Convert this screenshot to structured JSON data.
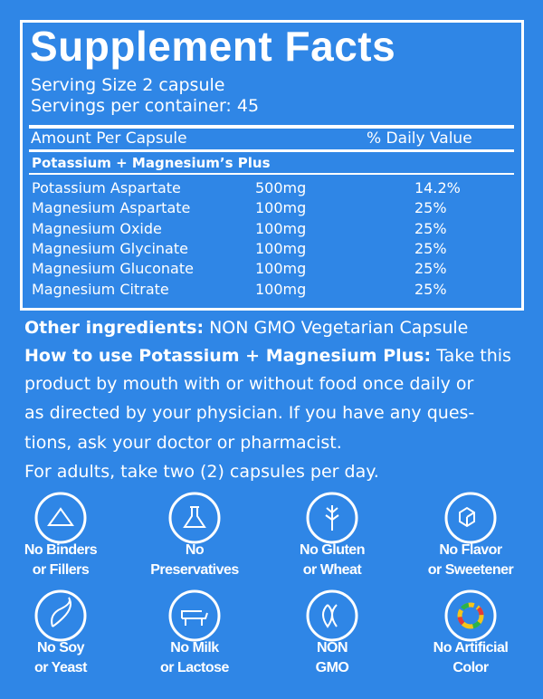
{
  "header": {
    "title": "Supplement Facts",
    "serving_size": "Serving Size 2 capsule",
    "servings": "Servings per container: 45"
  },
  "table": {
    "columns": [
      "Amount Per Capsule",
      "% Daily Value"
    ],
    "section": "Potassium + Magnesium’s Plus",
    "rows": [
      [
        "Potassium Aspartate",
        "500mg",
        "14.2%"
      ],
      [
        "Magnesium Aspartate",
        "100mg",
        "25%"
      ],
      [
        "Magnesium Oxide",
        "100mg",
        "25%"
      ],
      [
        "Magnesium Glycinate",
        "100mg",
        "25%"
      ],
      [
        "Magnesium Gluconate",
        "100mg",
        "25%"
      ],
      [
        "Magnesium Citrate",
        "100mg",
        "25%"
      ]
    ]
  },
  "other_ingredients": {
    "label": "Other ingredients:",
    "text": "NON GMO Vegetarian Capsule"
  },
  "how_to_use": {
    "label": "How to use Potassium + Magnesium Plus:",
    "lines": [
      "Take this",
      "product by mouth with or without food once daily or",
      "as directed by your physician. If you have any ques-",
      "tions, ask your doctor or pharmacist."
    ]
  },
  "adults": "For adults, take two (2) capsules per day.",
  "badges": [
    [
      "No Binders",
      "or Fillers"
    ],
    [
      "No",
      "Preservatives"
    ],
    [
      "No Gluten",
      "or Wheat"
    ],
    [
      "No Flavor",
      "or Sweetener"
    ],
    [
      "No Soy",
      "or Yeast"
    ],
    [
      "No Milk",
      "or Lactose"
    ],
    [
      "NON",
      "GMO"
    ],
    [
      "No Artificial",
      "Color"
    ]
  ]
}
